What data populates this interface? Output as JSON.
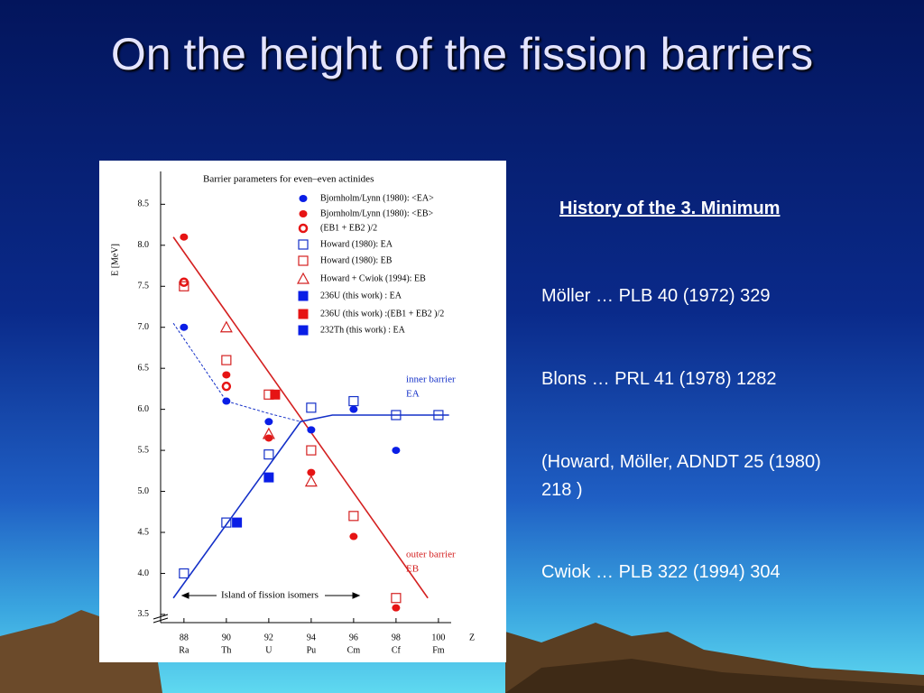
{
  "title": "On the height of the fission barriers",
  "subtitle": "History of the 3. Minimum",
  "references": [
    "Möller … PLB 40 (1972) 329",
    "Blons … PRL 41 (1978) 1282",
    "(Howard, Möller, ADNDT 25 (1980) 218 )",
    "Cwiok … PLB 322 (1994) 304"
  ],
  "chart_data": {
    "type": "scatter",
    "title": "Barrier parameters for even–even actinides",
    "y_label": "E [MeV]",
    "x_label": "Z",
    "xlim": [
      86.9,
      100.6
    ],
    "ylim": [
      3.4,
      8.9
    ],
    "xticks": [
      88,
      90,
      92,
      94,
      96,
      98,
      100
    ],
    "x_elements": [
      "Ra",
      "Th",
      "U",
      "Pu",
      "Cm",
      "Cf",
      "Fm"
    ],
    "yticks": [
      {
        "value": 3.5,
        "label": "3.5"
      },
      {
        "value": 4,
        "label": "4.0"
      },
      {
        "value": 4.5,
        "label": "4.5"
      },
      {
        "value": 5,
        "label": "5.0"
      },
      {
        "value": 5.5,
        "label": "5.5"
      },
      {
        "value": 6,
        "label": "6.0"
      },
      {
        "value": 6.5,
        "label": "6.5"
      },
      {
        "value": 7,
        "label": "7.0"
      },
      {
        "value": 7.5,
        "label": "7.5"
      },
      {
        "value": 8,
        "label": "8.0"
      },
      {
        "value": 8.5,
        "label": "8.5"
      }
    ],
    "series": [
      {
        "name": "Bjornholm/Lynn (1980): <EA>",
        "color": "#0a1ee6",
        "marker": "dot",
        "x": [
          88,
          90,
          92,
          94,
          96,
          98
        ],
        "values": [
          7.0,
          6.1,
          5.85,
          5.75,
          6.0,
          5.5
        ]
      },
      {
        "name": "Bjornholm/Lynn (1980): <EB>",
        "color": "#e61414",
        "marker": "dot",
        "x": [
          88,
          90,
          92,
          94,
          96,
          98
        ],
        "values": [
          8.1,
          6.42,
          5.65,
          5.23,
          4.45,
          3.58
        ]
      },
      {
        "name": "(EB1 + EB2 )/2",
        "color": "#e61414",
        "marker": "circle",
        "x": [
          88,
          90
        ],
        "values": [
          7.55,
          6.28
        ]
      },
      {
        "name": "Howard (1980): EA",
        "color": "#1430c8",
        "marker": "square-open",
        "x": [
          88,
          90,
          92,
          94,
          96,
          98,
          100
        ],
        "values": [
          4.0,
          4.62,
          5.45,
          6.02,
          6.1,
          5.93,
          5.93
        ]
      },
      {
        "name": "Howard (1980): EB",
        "color": "#d42020",
        "marker": "square-open",
        "x": [
          88,
          90,
          92,
          94,
          96,
          98
        ],
        "values": [
          7.5,
          6.6,
          6.18,
          5.5,
          4.7,
          3.7
        ]
      },
      {
        "name": "Howard + Cwiok (1994): EB",
        "color": "#d42020",
        "marker": "triangle",
        "x": [
          90,
          92,
          94
        ],
        "values": [
          7.0,
          5.7,
          5.12
        ]
      },
      {
        "name": "236U (this work) : EA",
        "color": "#0a1ee6",
        "marker": "square",
        "x": [
          92
        ],
        "values": [
          5.17
        ]
      },
      {
        "name": "236U (this work) :(EB1 + EB2 )/2",
        "color": "#e61414",
        "marker": "square",
        "x": [
          92.3
        ],
        "values": [
          6.18
        ]
      },
      {
        "name": "232Th (this work) : EA",
        "color": "#0a1ee6",
        "marker": "square",
        "x": [
          90.5
        ],
        "values": [
          4.62
        ]
      }
    ],
    "fit_lines": [
      {
        "color": "#d42020",
        "dashed": false,
        "x": [
          87.5,
          99.5
        ],
        "values": [
          8.1,
          3.7
        ]
      },
      {
        "color": "#1430c8",
        "dashed": false,
        "x": [
          87.5,
          93.5,
          95,
          100.5
        ],
        "values": [
          3.7,
          5.85,
          5.93,
          5.93
        ]
      },
      {
        "color": "#1430c8",
        "dashed": true,
        "x": [
          87.5,
          90,
          92,
          93.5
        ],
        "values": [
          7.05,
          6.1,
          5.95,
          5.85
        ]
      }
    ],
    "annotations": [
      "inner barrier",
      "EA",
      "outer barrier",
      "EB",
      "Island of fission isomers"
    ]
  }
}
